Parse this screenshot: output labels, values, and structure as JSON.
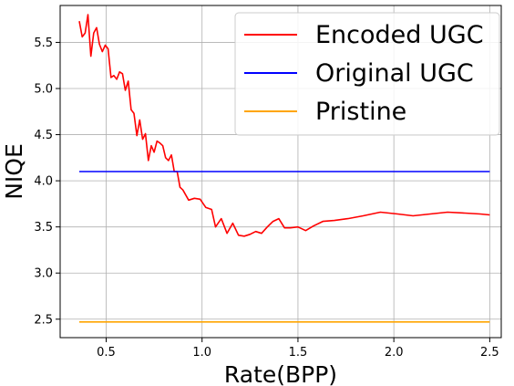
{
  "chart_data": {
    "type": "line",
    "title": "",
    "xlabel": "Rate(BPP)",
    "ylabel": "NIQE",
    "xlim": [
      0.26,
      2.56
    ],
    "ylim": [
      2.3,
      5.9
    ],
    "xticks": [
      0.5,
      1.0,
      1.5,
      2.0,
      2.5
    ],
    "xtick_labels": [
      "0.5",
      "1.0",
      "1.5",
      "2.0",
      "2.5"
    ],
    "yticks": [
      2.5,
      3.0,
      3.5,
      4.0,
      4.5,
      5.0,
      5.5
    ],
    "ytick_labels": [
      "2.5",
      "3.0",
      "3.5",
      "4.0",
      "4.5",
      "5.0",
      "5.5"
    ],
    "grid": true,
    "legend_position": "top-right",
    "series": [
      {
        "name": "Encoded UGC",
        "color": "#ff0000",
        "x": [
          0.36,
          0.375,
          0.39,
          0.405,
          0.42,
          0.435,
          0.45,
          0.465,
          0.48,
          0.495,
          0.51,
          0.525,
          0.54,
          0.555,
          0.57,
          0.585,
          0.6,
          0.615,
          0.63,
          0.645,
          0.66,
          0.675,
          0.69,
          0.705,
          0.72,
          0.735,
          0.75,
          0.765,
          0.78,
          0.795,
          0.81,
          0.825,
          0.84,
          0.855,
          0.87,
          0.885,
          0.9,
          0.93,
          0.96,
          0.99,
          1.02,
          1.05,
          1.07,
          1.1,
          1.13,
          1.16,
          1.19,
          1.22,
          1.25,
          1.28,
          1.31,
          1.34,
          1.37,
          1.4,
          1.43,
          1.46,
          1.5,
          1.54,
          1.58,
          1.63,
          1.69,
          1.76,
          1.84,
          1.93,
          2.02,
          2.1,
          2.19,
          2.28,
          2.37,
          2.45,
          2.5
        ],
        "values": [
          5.73,
          5.56,
          5.6,
          5.8,
          5.35,
          5.6,
          5.66,
          5.48,
          5.4,
          5.47,
          5.43,
          5.12,
          5.14,
          5.1,
          5.18,
          5.16,
          4.98,
          5.08,
          4.77,
          4.73,
          4.49,
          4.66,
          4.45,
          4.51,
          4.22,
          4.38,
          4.31,
          4.43,
          4.41,
          4.38,
          4.25,
          4.22,
          4.28,
          4.1,
          4.1,
          3.93,
          3.9,
          3.79,
          3.81,
          3.8,
          3.71,
          3.69,
          3.5,
          3.59,
          3.43,
          3.54,
          3.41,
          3.4,
          3.42,
          3.45,
          3.43,
          3.5,
          3.56,
          3.59,
          3.49,
          3.49,
          3.5,
          3.46,
          3.51,
          3.56,
          3.57,
          3.59,
          3.62,
          3.66,
          3.64,
          3.62,
          3.64,
          3.66,
          3.65,
          3.64,
          3.63
        ]
      },
      {
        "name": "Original UGC",
        "color": "#0000ff",
        "x": [
          0.36,
          2.5
        ],
        "values": [
          4.1,
          4.1
        ]
      },
      {
        "name": "Pristine",
        "color": "#ffa500",
        "x": [
          0.36,
          2.5
        ],
        "values": [
          2.47,
          2.47
        ]
      }
    ]
  }
}
